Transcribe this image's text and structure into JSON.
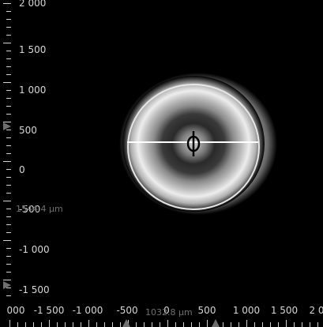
{
  "viewer": {
    "y_axis_labels": [
      "2 000",
      "1 500",
      "1 000",
      "500",
      "0",
      "-500",
      "-1 000",
      "-1 500"
    ],
    "x_axis_labels": [
      "000",
      "-1 500",
      "-1 000",
      "-500",
      "0",
      "500",
      "1 000",
      "1 500",
      "2 0"
    ],
    "vertical_measurement": "1544.4 µm",
    "horizontal_measurement": "1032.8 µm",
    "colors": {
      "background": "#000000",
      "ring": "#d8d8d8",
      "crosshair": "#000000",
      "measure_line": "#ffffff",
      "ruler_text": "#d6d6d6"
    },
    "icons": [
      "crosshair-icon",
      "ruler-marker-icon"
    ]
  }
}
